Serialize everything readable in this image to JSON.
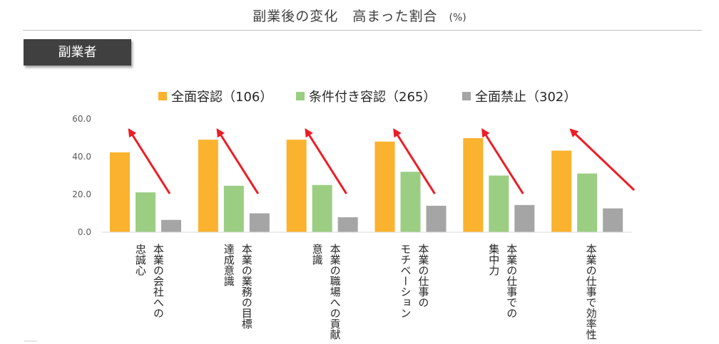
{
  "header": {
    "title": "副業後の変化　高まった割合",
    "unit": "(%)"
  },
  "section": {
    "label": "副業者"
  },
  "colors": {
    "orange": "#FBB22E",
    "green": "#9BCE83",
    "gray": "#A5A5A5",
    "arrow": "#EE1C25",
    "axis": "#D9D9D9"
  },
  "chart_data": {
    "type": "bar",
    "categories": [
      "本業の会社への\n忠誠心",
      "本業の業務の目標\n達成意識",
      "本業の職場への貢献\n意識",
      "本業の仕事の\nモチベーション",
      "本業の仕事での\n集中力",
      "本業の仕事で効率性"
    ],
    "series": [
      {
        "name": "全面容認（106）",
        "color": "#FBB22E",
        "values": [
          42.3,
          49.0,
          49.0,
          48.0,
          49.8,
          43.2
        ]
      },
      {
        "name": "条件付き容認（265）",
        "color": "#9BCE83",
        "values": [
          21.1,
          24.6,
          25.0,
          32.0,
          30.0,
          31.1
        ]
      },
      {
        "name": "全面禁止（302）",
        "color": "#A5A5A5",
        "values": [
          6.5,
          10.0,
          7.9,
          14.0,
          14.4,
          12.6
        ]
      }
    ],
    "ylim": [
      0,
      60
    ],
    "yticks": [
      "0.0",
      "20.0",
      "40.0",
      "60.0"
    ],
    "grid": false,
    "legend_position": "top"
  }
}
